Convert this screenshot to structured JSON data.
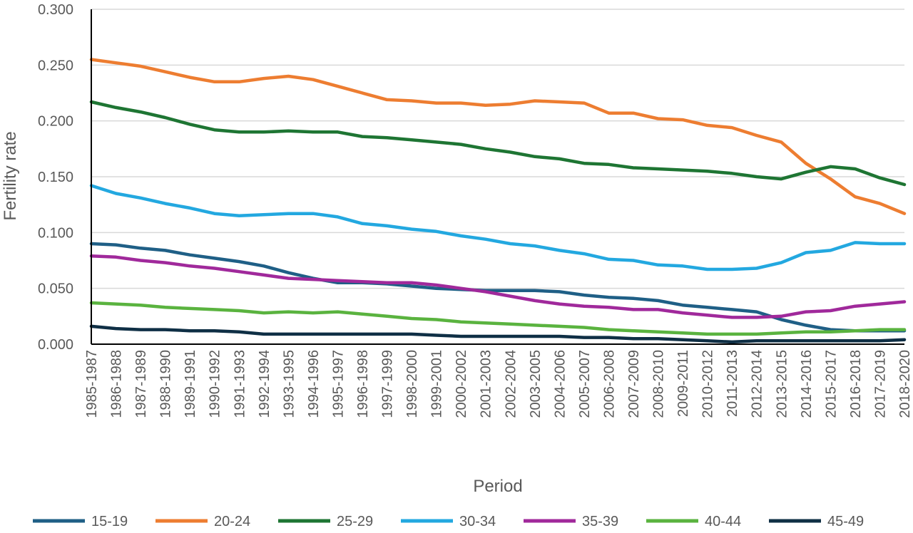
{
  "chart_data": {
    "type": "line",
    "title": "",
    "xlabel": "Period",
    "ylabel": "Fertility rate",
    "ylim": [
      0,
      0.3
    ],
    "yticks": [
      "0.000",
      "0.050",
      "0.100",
      "0.150",
      "0.200",
      "0.250",
      "0.300"
    ],
    "grid": true,
    "legend_position": "bottom",
    "categories": [
      "1985-1987",
      "1986-1988",
      "1987-1989",
      "1988-1990",
      "1989-1991",
      "1990-1992",
      "1991-1993",
      "1992-1994",
      "1993-1995",
      "1994-1996",
      "1995-1997",
      "1996-1998",
      "1997-1999",
      "1998-2000",
      "1999-2001",
      "2000-2002",
      "2001-2003",
      "2002-2004",
      "2003-2005",
      "2004-2006",
      "2005-2007",
      "2006-2008",
      "2007-2009",
      "2008-2010",
      "2009-2011",
      "2010-2012",
      "2011-2013",
      "2012-2014",
      "2013-2015",
      "2014-2016",
      "2015-2017",
      "2016-2018",
      "2017-2019",
      "2018-2020"
    ],
    "series": [
      {
        "name": "15-19",
        "color": "#1f5f86",
        "values": [
          0.09,
          0.089,
          0.086,
          0.084,
          0.08,
          0.077,
          0.074,
          0.07,
          0.064,
          0.059,
          0.055,
          0.055,
          0.054,
          0.052,
          0.05,
          0.049,
          0.048,
          0.048,
          0.048,
          0.047,
          0.044,
          0.042,
          0.041,
          0.039,
          0.035,
          0.033,
          0.031,
          0.029,
          0.022,
          0.017,
          0.013,
          0.012,
          0.012,
          0.012
        ]
      },
      {
        "name": "20-24",
        "color": "#ed7d31",
        "values": [
          0.255,
          0.252,
          0.249,
          0.244,
          0.239,
          0.235,
          0.235,
          0.238,
          0.24,
          0.237,
          0.231,
          0.225,
          0.219,
          0.218,
          0.216,
          0.216,
          0.214,
          0.215,
          0.218,
          0.217,
          0.216,
          0.207,
          0.207,
          0.202,
          0.201,
          0.196,
          0.194,
          0.187,
          0.181,
          0.162,
          0.148,
          0.132,
          0.126,
          0.117
        ]
      },
      {
        "name": "25-29",
        "color": "#1e7533",
        "values": [
          0.217,
          0.212,
          0.208,
          0.203,
          0.197,
          0.192,
          0.19,
          0.19,
          0.191,
          0.19,
          0.19,
          0.186,
          0.185,
          0.183,
          0.181,
          0.179,
          0.175,
          0.172,
          0.168,
          0.166,
          0.162,
          0.161,
          0.158,
          0.157,
          0.156,
          0.155,
          0.153,
          0.15,
          0.148,
          0.154,
          0.159,
          0.157,
          0.149,
          0.143
        ]
      },
      {
        "name": "30-34",
        "color": "#23a8e0",
        "values": [
          0.142,
          0.135,
          0.131,
          0.126,
          0.122,
          0.117,
          0.115,
          0.116,
          0.117,
          0.117,
          0.114,
          0.108,
          0.106,
          0.103,
          0.101,
          0.097,
          0.094,
          0.09,
          0.088,
          0.084,
          0.081,
          0.076,
          0.075,
          0.071,
          0.07,
          0.067,
          0.067,
          0.068,
          0.073,
          0.082,
          0.084,
          0.091,
          0.09,
          0.09
        ]
      },
      {
        "name": "35-39",
        "color": "#a0299b",
        "values": [
          0.079,
          0.078,
          0.075,
          0.073,
          0.07,
          0.068,
          0.065,
          0.062,
          0.059,
          0.058,
          0.057,
          0.056,
          0.055,
          0.055,
          0.053,
          0.05,
          0.047,
          0.043,
          0.039,
          0.036,
          0.034,
          0.033,
          0.031,
          0.031,
          0.028,
          0.026,
          0.024,
          0.024,
          0.025,
          0.029,
          0.03,
          0.034,
          0.036,
          0.038
        ]
      },
      {
        "name": "40-44",
        "color": "#5ab33f",
        "values": [
          0.037,
          0.036,
          0.035,
          0.033,
          0.032,
          0.031,
          0.03,
          0.028,
          0.029,
          0.028,
          0.029,
          0.027,
          0.025,
          0.023,
          0.022,
          0.02,
          0.019,
          0.018,
          0.017,
          0.016,
          0.015,
          0.013,
          0.012,
          0.011,
          0.01,
          0.009,
          0.009,
          0.009,
          0.01,
          0.011,
          0.011,
          0.012,
          0.013,
          0.013
        ]
      },
      {
        "name": "45-49",
        "color": "#0f2f45",
        "values": [
          0.016,
          0.014,
          0.013,
          0.013,
          0.012,
          0.012,
          0.011,
          0.009,
          0.009,
          0.009,
          0.009,
          0.009,
          0.009,
          0.009,
          0.008,
          0.007,
          0.007,
          0.007,
          0.007,
          0.007,
          0.006,
          0.006,
          0.005,
          0.005,
          0.004,
          0.003,
          0.002,
          0.003,
          0.003,
          0.003,
          0.003,
          0.003,
          0.003,
          0.004
        ]
      }
    ]
  }
}
